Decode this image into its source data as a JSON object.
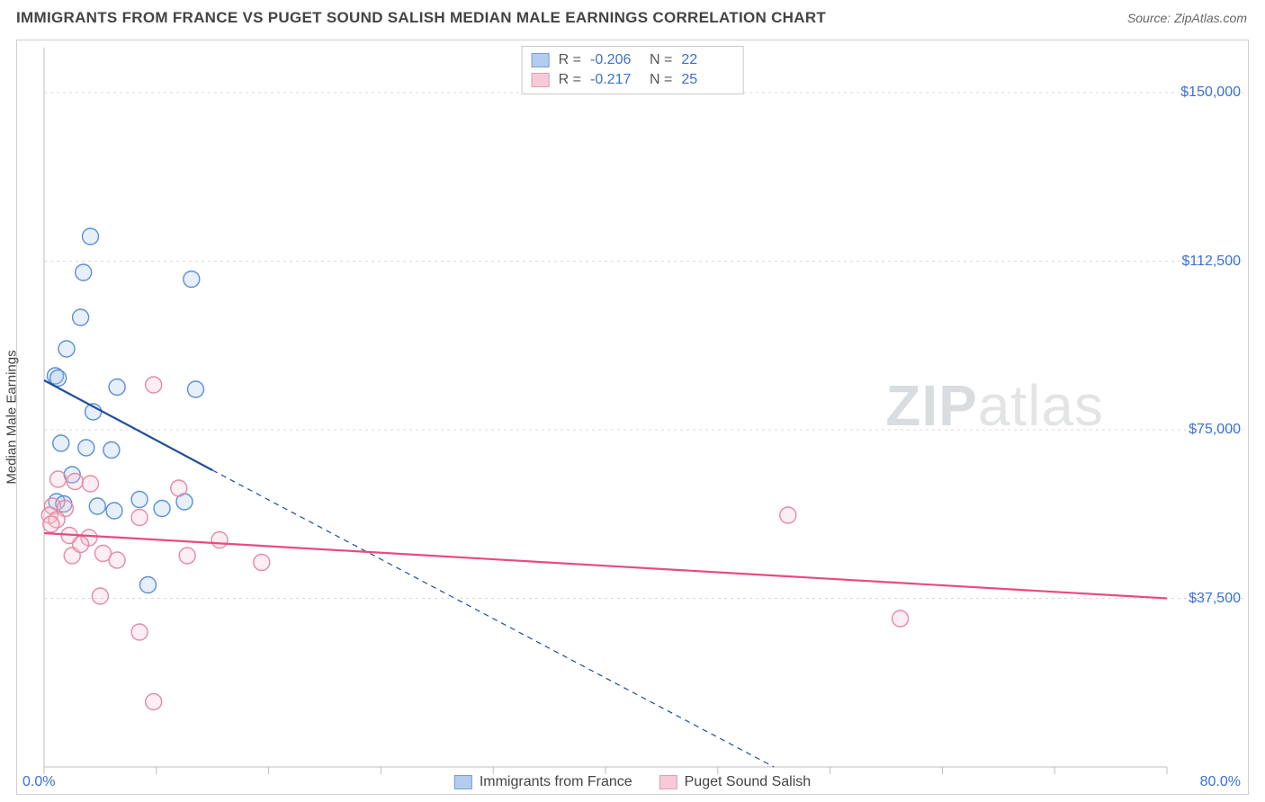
{
  "title": "IMMIGRANTS FROM FRANCE VS PUGET SOUND SALISH MEDIAN MALE EARNINGS CORRELATION CHART",
  "source": "Source: ZipAtlas.com",
  "ylabel": "Median Male Earnings",
  "watermark_zip": "ZIP",
  "watermark_atlas": "atlas",
  "chart": {
    "type": "scatter",
    "background_color": "#ffffff",
    "grid_color": "#d9d9d9",
    "grid_dash": "3,4",
    "border_color": "#cfcfcf",
    "xlim": [
      0,
      80
    ],
    "ylim": [
      0,
      160000
    ],
    "y_gridlines": [
      37500,
      75000,
      112500,
      150000
    ],
    "y_tick_labels": [
      "$37,500",
      "$75,000",
      "$112,500",
      "$150,000"
    ],
    "x_tick_min_label": "0.0%",
    "x_tick_max_label": "80.0%",
    "x_minor_ticks": [
      0,
      8,
      16,
      24,
      32,
      40,
      48,
      56,
      64,
      72,
      80
    ],
    "marker_radius": 9,
    "marker_stroke_width": 1.4,
    "marker_fill_opacity": 0.28,
    "trend_line_width": 2.2,
    "trend_dash": "6,5"
  },
  "series": [
    {
      "name": "Immigrants from France",
      "color_stroke": "#5b8fd6",
      "color_fill": "#a7c5ec",
      "trend_color": "#1f4e9c",
      "R": "-0.206",
      "N": "22",
      "trend_solid": {
        "x1": 0,
        "y1": 86000,
        "x2": 12,
        "y2": 66000
      },
      "trend_dash_seg": {
        "x1": 12,
        "y1": 66000,
        "x2": 52,
        "y2": 0
      },
      "points": [
        {
          "x": 3.3,
          "y": 118000
        },
        {
          "x": 2.8,
          "y": 110000
        },
        {
          "x": 10.5,
          "y": 108500
        },
        {
          "x": 2.6,
          "y": 100000
        },
        {
          "x": 1.6,
          "y": 93000
        },
        {
          "x": 0.8,
          "y": 87000
        },
        {
          "x": 1.0,
          "y": 86500
        },
        {
          "x": 5.2,
          "y": 84500
        },
        {
          "x": 10.8,
          "y": 84000
        },
        {
          "x": 3.5,
          "y": 79000
        },
        {
          "x": 1.2,
          "y": 72000
        },
        {
          "x": 3.0,
          "y": 71000
        },
        {
          "x": 4.8,
          "y": 70500
        },
        {
          "x": 2.0,
          "y": 65000
        },
        {
          "x": 6.8,
          "y": 59500
        },
        {
          "x": 10.0,
          "y": 59000
        },
        {
          "x": 0.9,
          "y": 59000
        },
        {
          "x": 3.8,
          "y": 58000
        },
        {
          "x": 8.4,
          "y": 57500
        },
        {
          "x": 7.4,
          "y": 40500
        },
        {
          "x": 1.4,
          "y": 58500
        },
        {
          "x": 5.0,
          "y": 57000
        }
      ]
    },
    {
      "name": "Puget Sound Salish",
      "color_stroke": "#e58aa5",
      "color_fill": "#f5c3d1",
      "trend_color": "#e64b84",
      "R": "-0.217",
      "N": "25",
      "trend_solid": {
        "x1": 0,
        "y1": 52000,
        "x2": 80,
        "y2": 37500
      },
      "trend_dash_seg": null,
      "points": [
        {
          "x": 7.8,
          "y": 85000
        },
        {
          "x": 1.0,
          "y": 64000
        },
        {
          "x": 2.2,
          "y": 63500
        },
        {
          "x": 3.3,
          "y": 63000
        },
        {
          "x": 9.6,
          "y": 62000
        },
        {
          "x": 0.6,
          "y": 58000
        },
        {
          "x": 1.5,
          "y": 57500
        },
        {
          "x": 0.4,
          "y": 56000
        },
        {
          "x": 6.8,
          "y": 55500
        },
        {
          "x": 0.9,
          "y": 55000
        },
        {
          "x": 0.5,
          "y": 54000
        },
        {
          "x": 1.8,
          "y": 51500
        },
        {
          "x": 3.2,
          "y": 51000
        },
        {
          "x": 12.5,
          "y": 50500
        },
        {
          "x": 4.2,
          "y": 47500
        },
        {
          "x": 2.0,
          "y": 47000
        },
        {
          "x": 10.2,
          "y": 47000
        },
        {
          "x": 5.2,
          "y": 46000
        },
        {
          "x": 15.5,
          "y": 45500
        },
        {
          "x": 4.0,
          "y": 38000
        },
        {
          "x": 6.8,
          "y": 30000
        },
        {
          "x": 7.8,
          "y": 14500
        },
        {
          "x": 53.0,
          "y": 56000
        },
        {
          "x": 61.0,
          "y": 33000
        },
        {
          "x": 2.6,
          "y": 49500
        }
      ]
    }
  ],
  "legend_top": {
    "r_label": "R =",
    "n_label": "N ="
  }
}
